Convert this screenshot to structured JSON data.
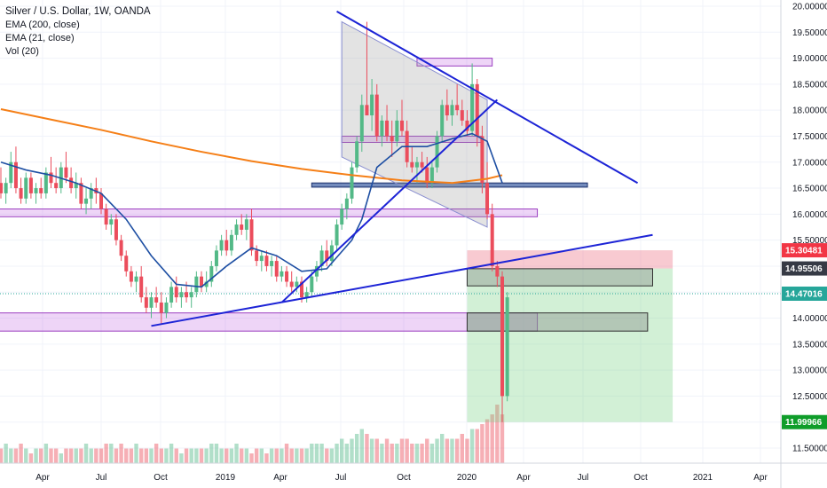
{
  "legend": {
    "title": "Silver / U.S. Dollar, 1W, OANDA",
    "ema200": "EMA (200, close)",
    "ema21": "EMA (21, close)",
    "vol": "Vol (20)"
  },
  "colors": {
    "up": "#53b987",
    "down": "#eb4d5c",
    "ema200": "#f57f17",
    "ema21": "#1e4fa3",
    "trend": "#1d24d6",
    "zone_purple": "#c774e6",
    "zone_blue": "#2a4f9a",
    "triangle": "#9a9a9a",
    "target": "#7fd38a",
    "stop": "#f08a9a"
  },
  "chart_data": {
    "type": "candlestick",
    "y_axis_ticks": [
      "20.00000",
      "19.50000",
      "19.00000",
      "18.50000",
      "18.00000",
      "17.50000",
      "17.00000",
      "16.50000",
      "16.00000",
      "15.50000",
      "15.00000",
      "14.50000",
      "14.00000",
      "13.50000",
      "13.00000",
      "12.50000",
      "12.00000",
      "11.50000"
    ],
    "x_axis_ticks": [
      "Apr",
      "Jul",
      "Oct",
      "2019",
      "Apr",
      "Jul",
      "Oct",
      "2020",
      "Apr",
      "Jul",
      "Oct",
      "2021",
      "Apr"
    ],
    "ylim": [
      11.1,
      20.1
    ],
    "price_labels": [
      {
        "value": 15.30481,
        "text": "15.30481",
        "bg": "#f23645",
        "fg": "#ffffff"
      },
      {
        "value": 14.95506,
        "text": "14.95506",
        "bg": "#363a45",
        "fg": "#ffffff"
      },
      {
        "value": 14.47016,
        "text": "14.47016",
        "bg": "#26a69a",
        "fg": "#ffffff"
      },
      {
        "value": 11.99966,
        "text": "11.99966",
        "bg": "#0f9d2a",
        "fg": "#ffffff"
      }
    ],
    "candles": [
      [
        16.6,
        16.9,
        16.3,
        16.4
      ],
      [
        16.4,
        16.7,
        16.2,
        16.6
      ],
      [
        16.6,
        17.2,
        16.5,
        17.0
      ],
      [
        17.0,
        17.3,
        16.4,
        16.5
      ],
      [
        16.5,
        16.7,
        16.2,
        16.3
      ],
      [
        16.3,
        16.8,
        16.2,
        16.7
      ],
      [
        16.7,
        16.8,
        16.3,
        16.4
      ],
      [
        16.4,
        16.6,
        16.2,
        16.5
      ],
      [
        16.5,
        16.7,
        16.3,
        16.4
      ],
      [
        16.4,
        16.9,
        16.3,
        16.8
      ],
      [
        16.8,
        17.1,
        16.5,
        16.6
      ],
      [
        16.6,
        16.9,
        16.4,
        16.5
      ],
      [
        16.5,
        17.0,
        16.4,
        16.9
      ],
      [
        16.9,
        17.2,
        16.6,
        16.7
      ],
      [
        16.7,
        16.9,
        16.4,
        16.5
      ],
      [
        16.5,
        16.8,
        16.3,
        16.6
      ],
      [
        16.6,
        16.7,
        16.1,
        16.2
      ],
      [
        16.2,
        16.5,
        16.0,
        16.3
      ],
      [
        16.3,
        16.6,
        16.1,
        16.5
      ],
      [
        16.5,
        16.7,
        16.2,
        16.4
      ],
      [
        16.4,
        16.5,
        16.0,
        16.1
      ],
      [
        16.1,
        16.2,
        15.7,
        15.8
      ],
      [
        15.8,
        16.0,
        15.6,
        15.9
      ],
      [
        15.9,
        16.0,
        15.4,
        15.5
      ],
      [
        15.5,
        15.6,
        15.1,
        15.2
      ],
      [
        15.2,
        15.3,
        14.8,
        14.9
      ],
      [
        14.9,
        15.0,
        14.6,
        14.7
      ],
      [
        14.7,
        14.9,
        14.5,
        14.8
      ],
      [
        14.8,
        15.0,
        14.3,
        14.4
      ],
      [
        14.4,
        14.6,
        14.1,
        14.2
      ],
      [
        14.2,
        14.5,
        14.0,
        14.4
      ],
      [
        14.4,
        14.6,
        14.2,
        14.3
      ],
      [
        14.3,
        14.5,
        13.9,
        14.1
      ],
      [
        14.1,
        14.4,
        14.0,
        14.3
      ],
      [
        14.3,
        14.7,
        14.2,
        14.6
      ],
      [
        14.6,
        14.8,
        14.3,
        14.4
      ],
      [
        14.4,
        14.6,
        14.2,
        14.5
      ],
      [
        14.5,
        14.7,
        14.3,
        14.4
      ],
      [
        14.4,
        14.6,
        14.2,
        14.5
      ],
      [
        14.5,
        14.9,
        14.4,
        14.8
      ],
      [
        14.8,
        14.9,
        14.5,
        14.6
      ],
      [
        14.6,
        14.9,
        14.5,
        14.7
      ],
      [
        14.7,
        15.1,
        14.6,
        15.0
      ],
      [
        15.0,
        15.4,
        14.9,
        15.3
      ],
      [
        15.3,
        15.6,
        15.2,
        15.5
      ],
      [
        15.5,
        15.7,
        15.2,
        15.3
      ],
      [
        15.3,
        15.7,
        15.2,
        15.6
      ],
      [
        15.6,
        15.9,
        15.5,
        15.8
      ],
      [
        15.8,
        16.0,
        15.6,
        15.7
      ],
      [
        15.7,
        16.0,
        15.5,
        15.9
      ],
      [
        15.9,
        16.1,
        15.2,
        15.3
      ],
      [
        15.3,
        15.4,
        15.0,
        15.1
      ],
      [
        15.1,
        15.3,
        14.9,
        15.2
      ],
      [
        15.2,
        15.3,
        14.9,
        15.0
      ],
      [
        15.0,
        15.2,
        14.8,
        15.1
      ],
      [
        15.1,
        15.2,
        14.7,
        14.8
      ],
      [
        14.8,
        15.0,
        14.7,
        14.9
      ],
      [
        14.9,
        15.0,
        14.6,
        14.7
      ],
      [
        14.7,
        14.9,
        14.5,
        14.6
      ],
      [
        14.6,
        14.8,
        14.5,
        14.7
      ],
      [
        14.7,
        14.8,
        14.3,
        14.4
      ],
      [
        14.4,
        14.6,
        14.3,
        14.5
      ],
      [
        14.5,
        14.9,
        14.4,
        14.8
      ],
      [
        14.8,
        15.1,
        14.7,
        15.0
      ],
      [
        15.0,
        15.4,
        14.9,
        15.3
      ],
      [
        15.3,
        15.5,
        15.0,
        15.1
      ],
      [
        15.1,
        15.5,
        15.0,
        15.4
      ],
      [
        15.4,
        15.9,
        15.3,
        15.8
      ],
      [
        15.8,
        16.2,
        15.7,
        16.1
      ],
      [
        16.1,
        16.4,
        15.9,
        16.3
      ],
      [
        16.3,
        17.0,
        16.2,
        16.9
      ],
      [
        16.9,
        17.5,
        16.8,
        17.4
      ],
      [
        17.4,
        18.3,
        17.2,
        18.1
      ],
      [
        18.1,
        19.7,
        17.9,
        17.9
      ],
      [
        17.9,
        18.6,
        17.6,
        18.3
      ],
      [
        18.3,
        18.5,
        17.4,
        17.5
      ],
      [
        17.5,
        17.9,
        17.3,
        17.8
      ],
      [
        17.8,
        18.1,
        17.4,
        17.5
      ],
      [
        17.5,
        17.8,
        17.1,
        17.4
      ],
      [
        17.4,
        18.0,
        17.3,
        17.8
      ],
      [
        17.8,
        18.2,
        17.5,
        17.6
      ],
      [
        17.6,
        17.8,
        16.9,
        17.0
      ],
      [
        17.0,
        17.3,
        16.8,
        16.9
      ],
      [
        16.9,
        17.1,
        16.6,
        17.0
      ],
      [
        17.0,
        17.2,
        16.8,
        16.9
      ],
      [
        16.9,
        17.1,
        16.5,
        16.6
      ],
      [
        16.6,
        17.0,
        16.5,
        16.9
      ],
      [
        16.9,
        17.6,
        16.8,
        17.5
      ],
      [
        17.5,
        18.2,
        17.4,
        18.1
      ],
      [
        18.1,
        18.4,
        17.8,
        17.9
      ],
      [
        17.9,
        18.2,
        17.7,
        18.1
      ],
      [
        18.1,
        18.5,
        17.9,
        18.0
      ],
      [
        18.0,
        18.2,
        17.7,
        17.8
      ],
      [
        17.8,
        18.0,
        17.5,
        17.6
      ],
      [
        17.6,
        18.9,
        17.5,
        18.5
      ],
      [
        18.5,
        18.6,
        17.3,
        17.5
      ],
      [
        17.5,
        17.7,
        16.4,
        16.6
      ],
      [
        16.6,
        17.0,
        15.9,
        16.0
      ],
      [
        16.0,
        16.2,
        14.9,
        15.0
      ],
      [
        15.0,
        15.1,
        14.6,
        14.8
      ],
      [
        14.8,
        14.9,
        12.0,
        12.5
      ],
      [
        12.5,
        14.5,
        12.4,
        14.4
      ]
    ],
    "volume": [
      3,
      4,
      3,
      3,
      4,
      3,
      2,
      3,
      3,
      4,
      3,
      3,
      2,
      3,
      3,
      3,
      3,
      4,
      3,
      3,
      3,
      4,
      4,
      3,
      4,
      3,
      3,
      4,
      3,
      3,
      3,
      4,
      3,
      3,
      4,
      3,
      2,
      3,
      3,
      3,
      3,
      3,
      4,
      4,
      3,
      3,
      3,
      4,
      3,
      3,
      2,
      3,
      3,
      2,
      3,
      3,
      3,
      4,
      3,
      3,
      3,
      3,
      4,
      4,
      4,
      3,
      3,
      4,
      5,
      4,
      5,
      6,
      7,
      6,
      5,
      5,
      4,
      5,
      4,
      4,
      5,
      5,
      4,
      4,
      4,
      5,
      4,
      5,
      6,
      5,
      5,
      5,
      6,
      5,
      7,
      7,
      8,
      9,
      10,
      12,
      10
    ],
    "ema200": [
      [
        0,
        18.02
      ],
      [
        10,
        17.82
      ],
      [
        20,
        17.62
      ],
      [
        30,
        17.4
      ],
      [
        40,
        17.2
      ],
      [
        50,
        17.02
      ],
      [
        60,
        16.87
      ],
      [
        70,
        16.75
      ],
      [
        80,
        16.65
      ],
      [
        90,
        16.6
      ],
      [
        97,
        16.68
      ],
      [
        100,
        16.75
      ]
    ],
    "ema21": [
      [
        0,
        17.0
      ],
      [
        5,
        16.85
      ],
      [
        10,
        16.75
      ],
      [
        15,
        16.6
      ],
      [
        20,
        16.4
      ],
      [
        25,
        15.9
      ],
      [
        30,
        15.2
      ],
      [
        35,
        14.65
      ],
      [
        40,
        14.6
      ],
      [
        45,
        15.0
      ],
      [
        50,
        15.35
      ],
      [
        55,
        15.2
      ],
      [
        60,
        14.9
      ],
      [
        65,
        14.95
      ],
      [
        70,
        15.5
      ],
      [
        72,
        15.9
      ],
      [
        75,
        16.9
      ],
      [
        80,
        17.3
      ],
      [
        85,
        17.3
      ],
      [
        90,
        17.45
      ],
      [
        94,
        17.55
      ],
      [
        97,
        17.4
      ],
      [
        100,
        16.6
      ]
    ],
    "zones": [
      {
        "y": [
          15.95,
          16.1
        ],
        "x": [
          -5,
          107
        ],
        "kind": "purple"
      },
      {
        "y": [
          13.75,
          14.1
        ],
        "x": [
          -5,
          107
        ],
        "kind": "purple"
      },
      {
        "y": [
          17.38,
          17.5
        ],
        "x": [
          68,
          96
        ],
        "kind": "purple"
      },
      {
        "y": [
          18.85,
          19.0
        ],
        "x": [
          83,
          98
        ],
        "kind": "purple"
      },
      {
        "y": [
          16.52,
          16.6
        ],
        "x": [
          62,
          117
        ],
        "kind": "blue"
      }
    ],
    "trendlines": [
      {
        "from": [
          30,
          13.85
        ],
        "to": [
          130,
          15.6
        ]
      },
      {
        "from": [
          56,
          14.3
        ],
        "to": [
          99,
          18.2
        ]
      },
      {
        "from": [
          67,
          19.9
        ],
        "to": [
          127,
          16.6
        ]
      }
    ],
    "triangle": [
      [
        68,
        19.7
      ],
      [
        97,
        18.2
      ],
      [
        97,
        15.75
      ],
      [
        68,
        17.1
      ]
    ],
    "position": {
      "entry": 14.95506,
      "stop": 15.30481,
      "target": 11.99966,
      "x": [
        93,
        134
      ]
    },
    "grey_boxes": [
      {
        "y": [
          14.62,
          14.95
        ],
        "x": [
          93,
          130
        ]
      },
      {
        "y": [
          13.75,
          14.1
        ],
        "x": [
          93,
          129
        ]
      }
    ],
    "current": 14.47016
  }
}
